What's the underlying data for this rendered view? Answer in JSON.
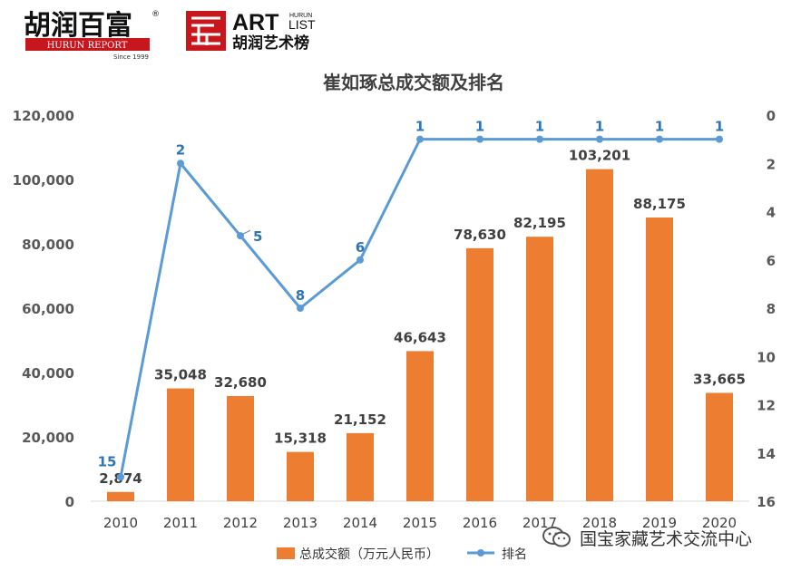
{
  "branding": {
    "hurun_cn": "胡润百富",
    "hurun_en": "HURUN REPORT",
    "since": "Since 1999",
    "registered": "®",
    "artlist_art": "ART",
    "artlist_hurun": "HURUN",
    "artlist_list": "LIST",
    "artlist_cn": "胡润艺术榜",
    "brand_red": "#c8161d"
  },
  "watermark": {
    "text": "国宝家藏艺术交流中心",
    "icon": "wechat-icon"
  },
  "chart_data": {
    "type": "bar+line",
    "title": "崔如琢总成交额及排名",
    "categories": [
      "2010",
      "2011",
      "2012",
      "2013",
      "2014",
      "2015",
      "2016",
      "2017",
      "2018",
      "2019",
      "2020"
    ],
    "bar_series": {
      "name": "总成交额（万元人民币）",
      "values": [
        2874,
        35048,
        32680,
        15318,
        21152,
        46643,
        78630,
        82195,
        103201,
        88175,
        33665
      ],
      "labels": [
        "2,874",
        "35,048",
        "32,680",
        "15,318",
        "21,152",
        "46,643",
        "78,630",
        "82,195",
        "103,201",
        "88,175",
        "33,665"
      ],
      "color": "#ed7d31"
    },
    "line_series": {
      "name": "排名",
      "values": [
        15,
        2,
        5,
        8,
        6,
        1,
        1,
        1,
        1,
        1,
        1
      ],
      "labels": [
        "15",
        "2",
        "5",
        "8",
        "6",
        "1",
        "1",
        "1",
        "1",
        "1",
        "1"
      ],
      "color": "#5b9bd5"
    },
    "y_left": {
      "min": 0,
      "max": 120000,
      "ticks": [
        0,
        20000,
        40000,
        60000,
        80000,
        100000,
        120000
      ],
      "tick_labels": [
        "0",
        "20,000",
        "40,000",
        "60,000",
        "80,000",
        "100,000",
        "120,000"
      ]
    },
    "y_right": {
      "min": 0,
      "max": 16,
      "reversed": true,
      "ticks": [
        0,
        2,
        4,
        6,
        8,
        10,
        12,
        14,
        16
      ],
      "tick_labels": [
        "0",
        "2",
        "4",
        "6",
        "8",
        "10",
        "12",
        "14",
        "16"
      ]
    },
    "grid": false,
    "legend_position": "bottom"
  }
}
